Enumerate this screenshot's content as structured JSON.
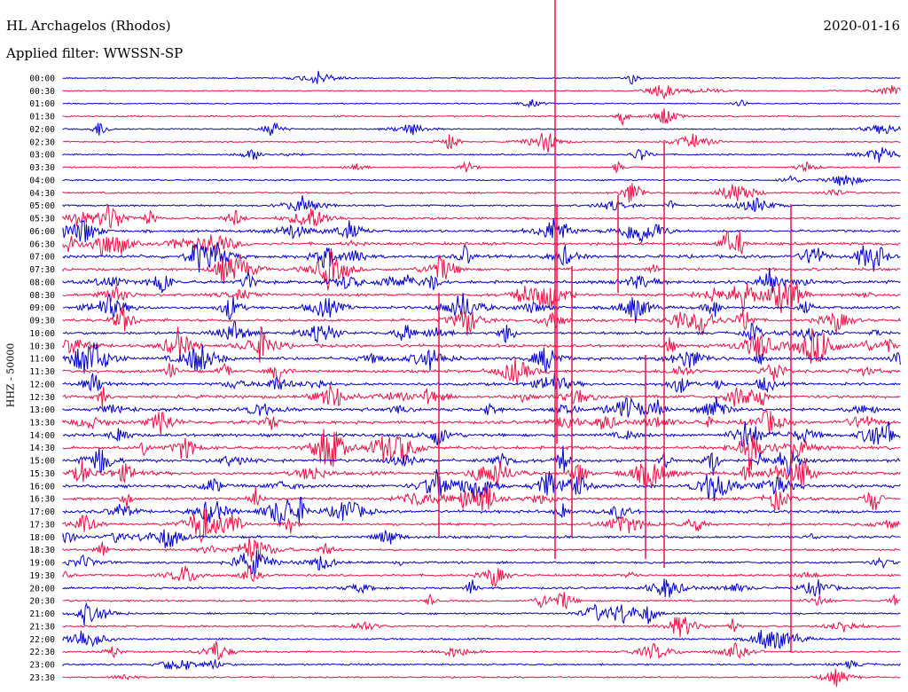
{
  "header": {
    "station": "HL Archagelos (Rhodos)",
    "date": "2020-01-16",
    "filter": "Applied filter: WWSSN-SP"
  },
  "chart_data": {
    "type": "helicorder",
    "ylabel": "HHZ - 50000",
    "row_labels": [
      "00:00",
      "00:30",
      "01:00",
      "01:30",
      "02:00",
      "02:30",
      "03:00",
      "03:30",
      "04:00",
      "04:30",
      "05:00",
      "05:30",
      "06:00",
      "06:30",
      "07:00",
      "07:30",
      "08:00",
      "08:30",
      "09:00",
      "09:30",
      "10:00",
      "10:30",
      "11:00",
      "11:30",
      "12:00",
      "12:30",
      "13:00",
      "13:30",
      "14:00",
      "14:30",
      "15:00",
      "15:30",
      "16:00",
      "16:30",
      "17:00",
      "17:30",
      "18:00",
      "18:30",
      "19:00",
      "19:30",
      "20:00",
      "20:30",
      "21:00",
      "21:30",
      "22:00",
      "22:30",
      "23:00",
      "23:30"
    ],
    "series_colors": [
      "#0000cc",
      "#ee1144"
    ],
    "noise_level": [
      1,
      1,
      1,
      2,
      2,
      2,
      2,
      2,
      2,
      3,
      3,
      4,
      5,
      6,
      7,
      6,
      7,
      6,
      6,
      6,
      6,
      7,
      7,
      6,
      6,
      7,
      7,
      7,
      7,
      7,
      7,
      7,
      7,
      6,
      6,
      5,
      5,
      4,
      4,
      4,
      4,
      3,
      3,
      3,
      3,
      3,
      3,
      2
    ]
  }
}
